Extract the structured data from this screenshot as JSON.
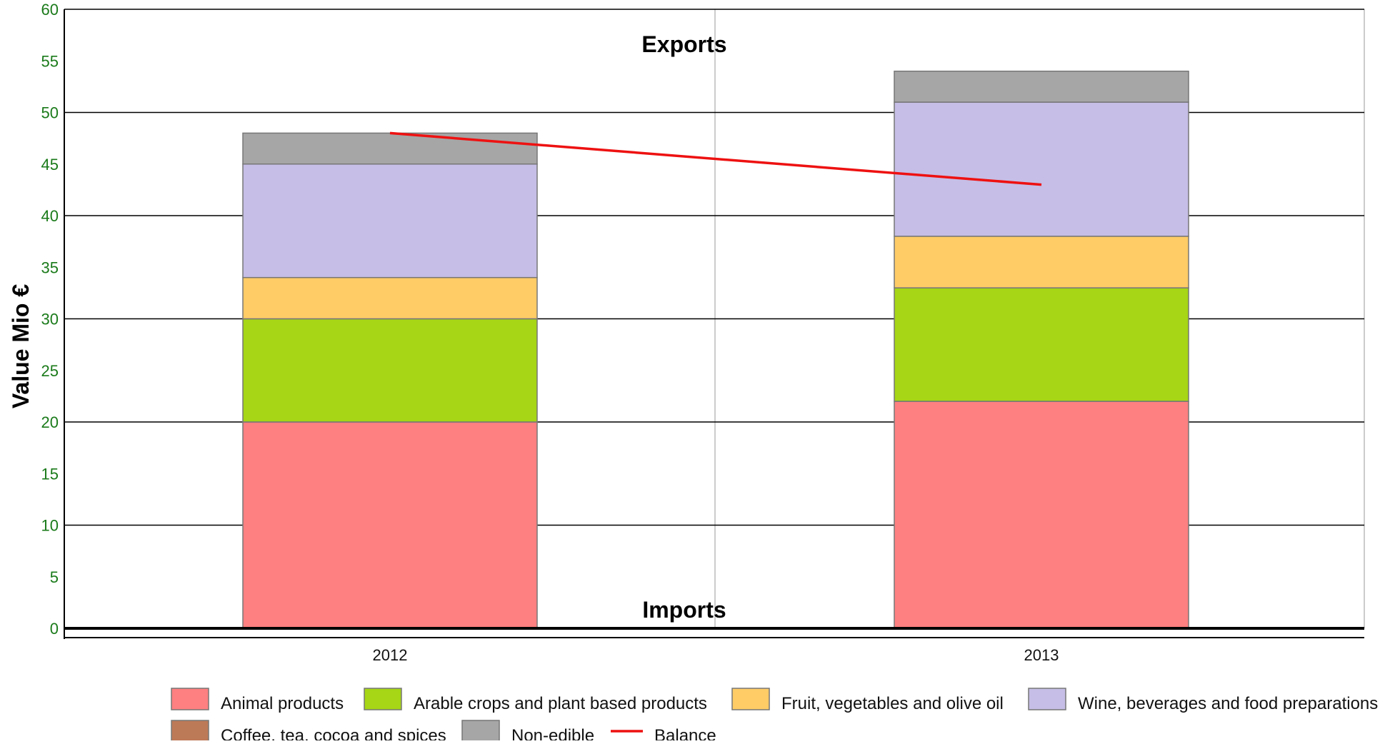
{
  "chart_data": {
    "type": "bar",
    "stacked": true,
    "title": "",
    "xlabel": "",
    "ylabel": "Value Mio €",
    "ylim": [
      0,
      60
    ],
    "yticks": [
      0,
      5,
      10,
      15,
      20,
      25,
      30,
      35,
      40,
      45,
      50,
      55,
      60
    ],
    "categories": [
      "2012",
      "2013"
    ],
    "series": [
      {
        "name": "Animal products",
        "color": "#ff8080",
        "values": [
          20,
          22
        ]
      },
      {
        "name": "Arable crops and plant based products",
        "color": "#a6d615",
        "values": [
          10,
          11
        ]
      },
      {
        "name": "Fruit, vegetables and olive oil",
        "color": "#ffcc66",
        "values": [
          4,
          5
        ]
      },
      {
        "name": "Wine, beverages and food preparations",
        "color": "#c6bee6",
        "values": [
          11,
          13
        ]
      },
      {
        "name": "Coffee, tea, cocoa and spices",
        "color": "#bd7a57",
        "values": [
          0,
          0
        ]
      },
      {
        "name": "Non-edible",
        "color": "#a6a6a6",
        "values": [
          3,
          3
        ]
      }
    ],
    "balance": {
      "name": "Balance",
      "color": "#ee1111",
      "values": [
        48,
        43
      ]
    },
    "annotations": {
      "top": "Exports",
      "bottom": "Imports"
    },
    "grid": true,
    "legend_position": "bottom"
  }
}
